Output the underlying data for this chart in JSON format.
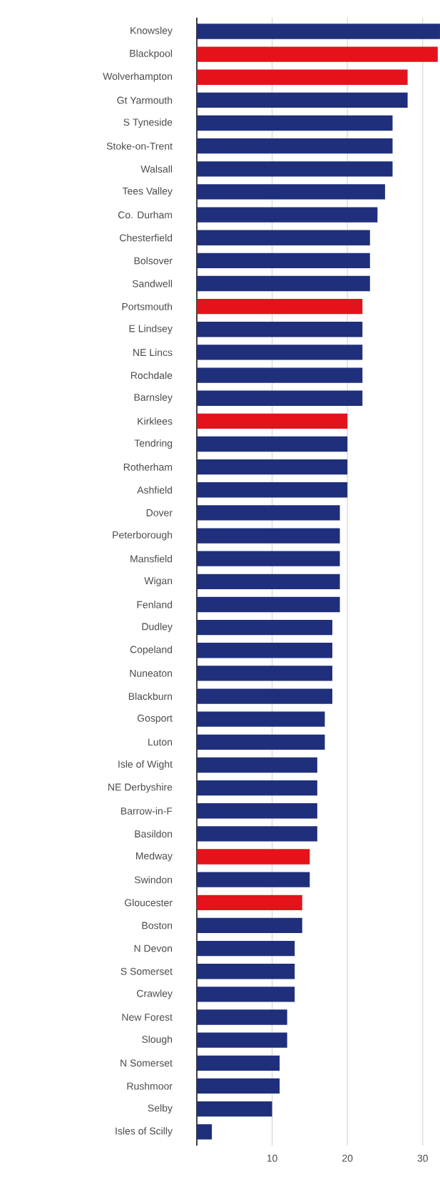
{
  "chart_data": {
    "type": "bar",
    "orientation": "horizontal",
    "grid": "x",
    "categories": [
      "Knowsley",
      "Blackpool",
      "Wolverhampton",
      "Gt Yarmouth",
      "S Tyneside",
      "Stoke-on-Trent",
      "Walsall",
      "Tees Valley",
      "Co. Durham",
      "Chesterfield",
      "Bolsover",
      "Sandwell",
      "Portsmouth",
      "E Lindsey",
      "NE Lincs",
      "Rochdale",
      "Barnsley",
      "Kirklees",
      "Tendring",
      "Rotherham",
      "Ashfield",
      "Dover",
      "Peterborough",
      "Mansfield",
      "Wigan",
      "Fenland",
      "Dudley",
      "Copeland",
      "Nuneaton",
      "Blackburn",
      "Gosport",
      "Luton",
      "Isle of Wight",
      "NE Derbyshire",
      "Barrow-in-F",
      "Basildon",
      "Medway",
      "Swindon",
      "Gloucester",
      "Boston",
      "N Devon",
      "S Somerset",
      "Crawley",
      "New Forest",
      "Slough",
      "N Somerset",
      "Rushmoor",
      "Selby",
      "Isles of Scilly"
    ],
    "values": [
      32.3,
      32,
      28,
      28,
      26,
      26,
      26,
      25,
      24,
      23,
      23,
      23,
      22,
      22,
      22,
      22,
      22,
      20,
      20,
      20,
      20,
      19,
      19,
      19,
      19,
      19,
      18,
      18,
      18,
      18,
      17,
      17,
      16,
      16,
      16,
      16,
      15,
      15,
      14,
      14,
      13,
      13,
      13,
      12,
      12,
      11,
      11,
      10,
      2
    ],
    "colors": [
      "#1f2f7c",
      "#e3121b",
      "#e3121b",
      "#1f2f7c",
      "#1f2f7c",
      "#1f2f7c",
      "#1f2f7c",
      "#1f2f7c",
      "#1f2f7c",
      "#1f2f7c",
      "#1f2f7c",
      "#1f2f7c",
      "#e3121b",
      "#1f2f7c",
      "#1f2f7c",
      "#1f2f7c",
      "#1f2f7c",
      "#e3121b",
      "#1f2f7c",
      "#1f2f7c",
      "#1f2f7c",
      "#1f2f7c",
      "#1f2f7c",
      "#1f2f7c",
      "#1f2f7c",
      "#1f2f7c",
      "#1f2f7c",
      "#1f2f7c",
      "#1f2f7c",
      "#1f2f7c",
      "#1f2f7c",
      "#1f2f7c",
      "#1f2f7c",
      "#1f2f7c",
      "#1f2f7c",
      "#1f2f7c",
      "#e3121b",
      "#1f2f7c",
      "#e3121b",
      "#1f2f7c",
      "#1f2f7c",
      "#1f2f7c",
      "#1f2f7c",
      "#1f2f7c",
      "#1f2f7c",
      "#1f2f7c",
      "#1f2f7c",
      "#1f2f7c",
      "#1f2f7c"
    ],
    "xlim": [
      0,
      32.3
    ],
    "xticks": [
      {
        "value": 0,
        "label": null
      },
      10,
      20,
      30
    ]
  }
}
